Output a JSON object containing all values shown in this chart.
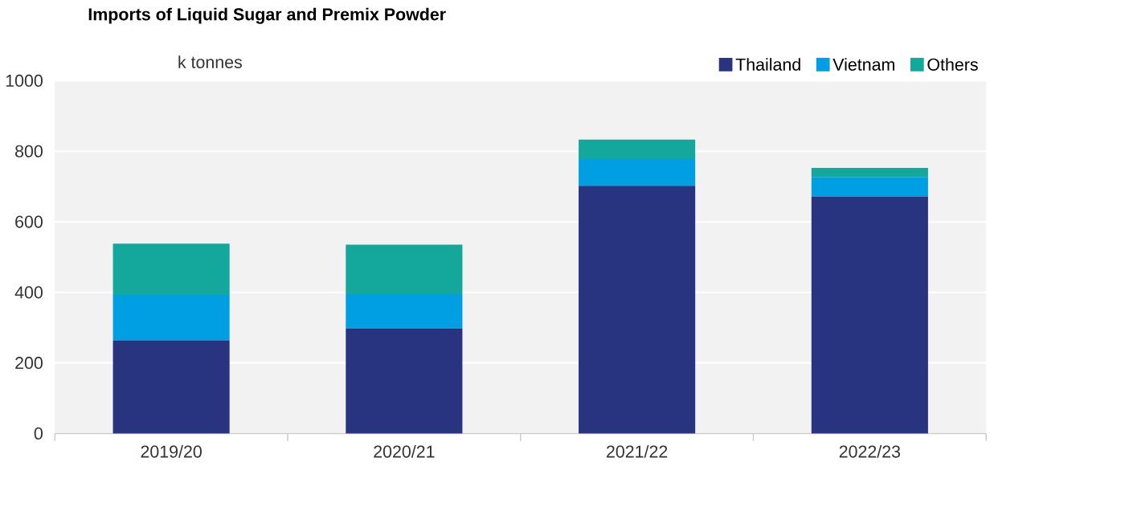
{
  "chart_data": {
    "type": "bar",
    "title": "Imports of Liquid Sugar and Premix Powder",
    "ylabel": "k tonnes",
    "categories": [
      "2019/20",
      "2020/21",
      "2021/22",
      "2022/23"
    ],
    "stacked": true,
    "series": [
      {
        "name": "Thailand",
        "color": "#283480",
        "values": [
          264,
          298,
          702,
          672
        ]
      },
      {
        "name": "Vietnam",
        "color": "#009fe3",
        "values": [
          129,
          97,
          76,
          54
        ]
      },
      {
        "name": "Others",
        "color": "#14a89c",
        "values": [
          145,
          140,
          55,
          27
        ]
      }
    ],
    "ylim": [
      0,
      1000
    ],
    "yticks": [
      0,
      200,
      400,
      600,
      800,
      1000
    ],
    "grid": "y",
    "legend": "top right"
  }
}
